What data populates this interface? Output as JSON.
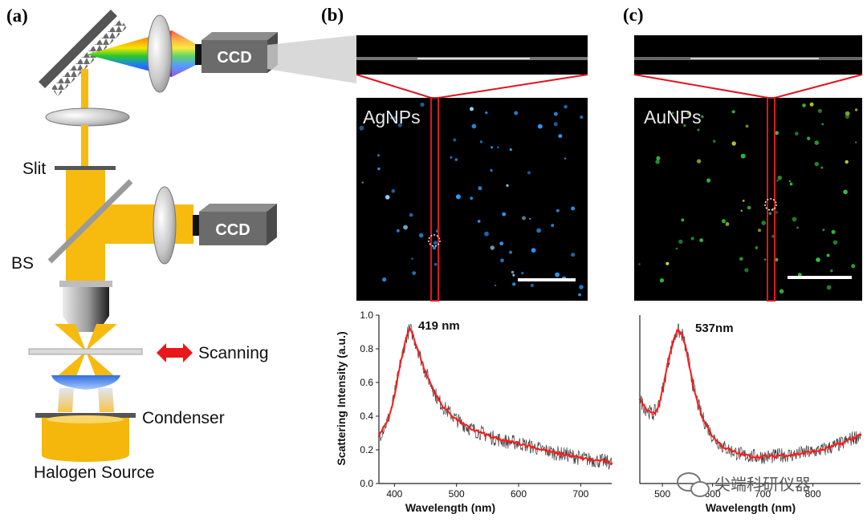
{
  "panel_labels": {
    "a": "(a)",
    "b": "(b)",
    "c": "(c)"
  },
  "setup": {
    "ccd_top": "CCD",
    "ccd_bottom": "CCD",
    "slit": "Slit",
    "bs": "BS",
    "scanning": "Scanning",
    "condenser": "Condenser",
    "source": "Halogen Source"
  },
  "images": {
    "b": {
      "label": "AgNPs",
      "dot_color": "#2e9cff"
    },
    "c": {
      "label": "AuNPs",
      "dot_color": "#33c040"
    }
  },
  "colors": {
    "beam": "#f7bb10",
    "spectrum_fit": "#ff1a1a",
    "highlight": "#e0141e"
  },
  "watermark": "尖端科研仪器",
  "chart_data": [
    {
      "type": "line",
      "panel": "b",
      "xlabel": "Wavelength (nm)",
      "ylabel": "Scattering Intensity (a.u.)",
      "xlim": [
        375,
        750
      ],
      "ylim": [
        0,
        1.0
      ],
      "xticks": [
        400,
        500,
        600,
        700
      ],
      "yticks": [
        0.0,
        0.2,
        0.4,
        0.6,
        0.8,
        1.0
      ],
      "annotation": "419 nm",
      "series": [
        {
          "x": [
            375,
            390,
            400,
            410,
            420,
            425,
            430,
            440,
            450,
            460,
            470,
            480,
            500,
            520,
            540,
            560,
            580,
            600,
            620,
            640,
            660,
            680,
            700,
            720,
            740,
            750
          ],
          "values": [
            0.28,
            0.38,
            0.52,
            0.72,
            0.88,
            0.92,
            0.88,
            0.77,
            0.66,
            0.58,
            0.5,
            0.45,
            0.38,
            0.33,
            0.3,
            0.27,
            0.25,
            0.24,
            0.22,
            0.2,
            0.18,
            0.17,
            0.15,
            0.14,
            0.13,
            0.12
          ]
        }
      ]
    },
    {
      "type": "line",
      "panel": "c",
      "xlabel": "Wavelength (nm)",
      "xlim": [
        455,
        895
      ],
      "ylim": [
        0,
        1.0
      ],
      "xticks": [
        500,
        600,
        700,
        800
      ],
      "annotation": "537nm",
      "series": [
        {
          "x": [
            455,
            465,
            480,
            490,
            500,
            510,
            520,
            530,
            540,
            550,
            560,
            570,
            580,
            600,
            620,
            640,
            660,
            680,
            700,
            720,
            740,
            760,
            780,
            800,
            820,
            840,
            860,
            880,
            895
          ],
          "values": [
            0.5,
            0.45,
            0.41,
            0.44,
            0.55,
            0.7,
            0.83,
            0.91,
            0.88,
            0.76,
            0.6,
            0.48,
            0.39,
            0.28,
            0.22,
            0.19,
            0.17,
            0.16,
            0.16,
            0.16,
            0.17,
            0.17,
            0.18,
            0.19,
            0.2,
            0.22,
            0.24,
            0.27,
            0.29
          ]
        }
      ]
    }
  ]
}
